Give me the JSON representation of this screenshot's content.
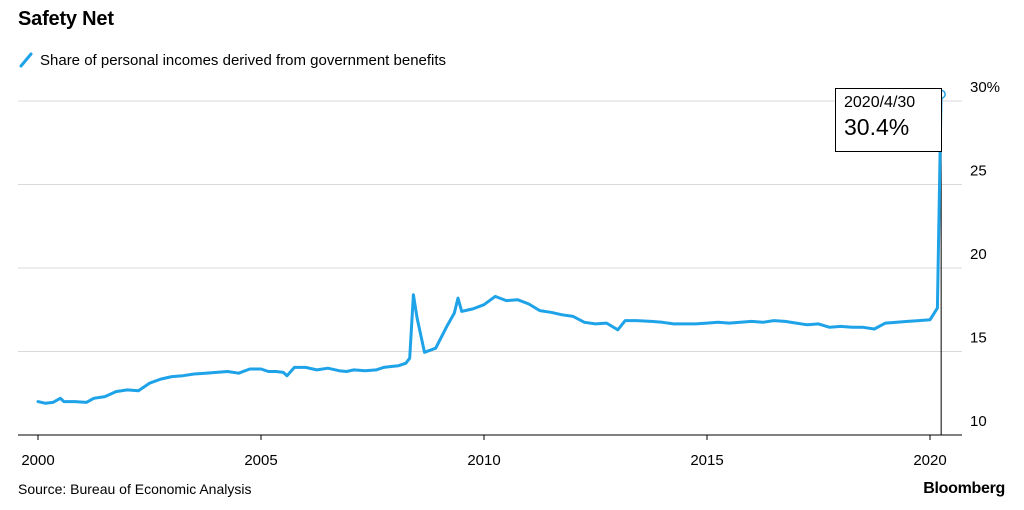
{
  "header": {
    "title": "Safety Net"
  },
  "legend": {
    "label": "Share of personal incomes derived from government benefits",
    "color": "#1ea2e8"
  },
  "callout": {
    "date": "2020/4/30",
    "value": "30.4%"
  },
  "footer": {
    "source": "Source: Bureau of Economic Analysis",
    "brand": "Bloomberg"
  },
  "chart_data": {
    "type": "line",
    "grid": true,
    "y_axis_side": "right",
    "ylim": [
      10,
      30
    ],
    "xlim": [
      "2000-01",
      "2020-07"
    ],
    "y_ticks": [
      {
        "value": 30,
        "label": "30%"
      },
      {
        "value": 25,
        "label": "25"
      },
      {
        "value": 20,
        "label": "20"
      },
      {
        "value": 15,
        "label": "15"
      },
      {
        "value": 10,
        "label": "10"
      }
    ],
    "x_ticks": [
      {
        "value": "2000",
        "label": "2000"
      },
      {
        "value": "2005",
        "label": "2005"
      },
      {
        "value": "2010",
        "label": "2010"
      },
      {
        "value": "2015",
        "label": "2015"
      },
      {
        "value": "2020",
        "label": "2020"
      }
    ],
    "series": [
      {
        "color": "#1ea2e8",
        "points": [
          [
            "2000-01",
            12.0
          ],
          [
            "2000-03",
            11.9
          ],
          [
            "2000-05",
            11.95
          ],
          [
            "2000-07",
            12.2
          ],
          [
            "2000-08",
            12.0
          ],
          [
            "2000-11",
            12.0
          ],
          [
            "2001-02",
            11.95
          ],
          [
            "2001-04",
            12.2
          ],
          [
            "2001-07",
            12.3
          ],
          [
            "2001-10",
            12.6
          ],
          [
            "2002-01",
            12.7
          ],
          [
            "2002-04",
            12.65
          ],
          [
            "2002-07",
            13.1
          ],
          [
            "2002-10",
            13.35
          ],
          [
            "2003-01",
            13.5
          ],
          [
            "2003-04",
            13.55
          ],
          [
            "2003-07",
            13.65
          ],
          [
            "2003-10",
            13.7
          ],
          [
            "2004-01",
            13.75
          ],
          [
            "2004-04",
            13.8
          ],
          [
            "2004-07",
            13.7
          ],
          [
            "2004-10",
            13.95
          ],
          [
            "2005-01",
            13.95
          ],
          [
            "2005-03",
            13.8
          ],
          [
            "2005-05",
            13.8
          ],
          [
            "2005-07",
            13.75
          ],
          [
            "2005-08",
            13.55
          ],
          [
            "2005-10",
            14.05
          ],
          [
            "2006-01",
            14.05
          ],
          [
            "2006-04",
            13.9
          ],
          [
            "2006-07",
            14.0
          ],
          [
            "2006-10",
            13.85
          ],
          [
            "2006-12",
            13.8
          ],
          [
            "2007-02",
            13.9
          ],
          [
            "2007-05",
            13.85
          ],
          [
            "2007-08",
            13.9
          ],
          [
            "2007-10",
            14.05
          ],
          [
            "2007-12",
            14.1
          ],
          [
            "2008-02",
            14.15
          ],
          [
            "2008-04",
            14.3
          ],
          [
            "2008-05",
            14.6
          ],
          [
            "2008-06",
            18.4
          ],
          [
            "2008-07",
            17.0
          ],
          [
            "2008-09",
            14.95
          ],
          [
            "2008-12",
            15.2
          ],
          [
            "2009-03",
            16.5
          ],
          [
            "2009-05",
            17.3
          ],
          [
            "2009-06",
            18.2
          ],
          [
            "2009-07",
            17.4
          ],
          [
            "2009-10",
            17.55
          ],
          [
            "2010-01",
            17.8
          ],
          [
            "2010-04",
            18.3
          ],
          [
            "2010-07",
            18.05
          ],
          [
            "2010-10",
            18.1
          ],
          [
            "2011-01",
            17.85
          ],
          [
            "2011-04",
            17.45
          ],
          [
            "2011-07",
            17.35
          ],
          [
            "2011-10",
            17.2
          ],
          [
            "2012-01",
            17.1
          ],
          [
            "2012-04",
            16.75
          ],
          [
            "2012-07",
            16.65
          ],
          [
            "2012-10",
            16.7
          ],
          [
            "2013-01",
            16.3
          ],
          [
            "2013-03",
            16.85
          ],
          [
            "2013-06",
            16.85
          ],
          [
            "2013-10",
            16.8
          ],
          [
            "2014-01",
            16.75
          ],
          [
            "2014-04",
            16.65
          ],
          [
            "2014-07",
            16.65
          ],
          [
            "2014-10",
            16.65
          ],
          [
            "2015-01",
            16.7
          ],
          [
            "2015-04",
            16.75
          ],
          [
            "2015-07",
            16.7
          ],
          [
            "2015-10",
            16.75
          ],
          [
            "2016-01",
            16.8
          ],
          [
            "2016-04",
            16.75
          ],
          [
            "2016-07",
            16.85
          ],
          [
            "2016-10",
            16.8
          ],
          [
            "2017-01",
            16.7
          ],
          [
            "2017-04",
            16.6
          ],
          [
            "2017-07",
            16.65
          ],
          [
            "2017-10",
            16.45
          ],
          [
            "2018-01",
            16.5
          ],
          [
            "2018-04",
            16.45
          ],
          [
            "2018-07",
            16.45
          ],
          [
            "2018-10",
            16.35
          ],
          [
            "2019-01",
            16.7
          ],
          [
            "2019-04",
            16.75
          ],
          [
            "2019-07",
            16.8
          ],
          [
            "2019-10",
            16.85
          ],
          [
            "2020-01",
            16.9
          ],
          [
            "2020-03",
            17.6
          ],
          [
            "2020-04",
            30.4
          ]
        ]
      }
    ]
  }
}
